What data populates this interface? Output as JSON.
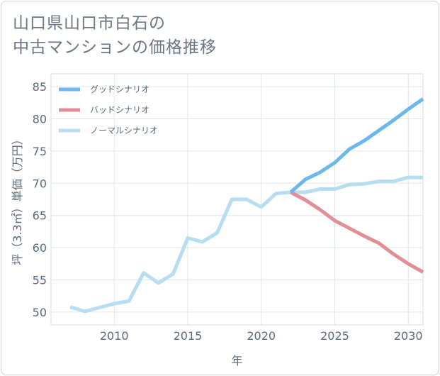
{
  "header": {
    "title_line1": "山口県山口市白石の",
    "title_line2": "中古マンションの価格推移"
  },
  "chart_data": {
    "type": "line",
    "title": "山口県山口市白石の中古マンションの価格推移",
    "xlabel": "年",
    "ylabel": "坪（3.3㎡）単価（万円）",
    "xlim": [
      2005.7,
      2031
    ],
    "ylim": [
      48,
      87
    ],
    "xticks": [
      2010,
      2015,
      2020,
      2025,
      2030
    ],
    "yticks": [
      50,
      55,
      60,
      65,
      70,
      75,
      80,
      85
    ],
    "grid": true,
    "legend_position": "top-left",
    "series": [
      {
        "name": "グッドシナリオ",
        "color": "#6cb8ea",
        "x": [
          2022,
          2023,
          2024,
          2025,
          2026,
          2027,
          2028,
          2029,
          2030,
          2031
        ],
        "values": [
          68.6,
          70.6,
          71.7,
          73.2,
          75.3,
          76.6,
          78.2,
          79.8,
          81.5,
          83.1
        ]
      },
      {
        "name": "バッドシナリオ",
        "color": "#e08f97",
        "x": [
          2022,
          2023,
          2024,
          2025,
          2026,
          2027,
          2028,
          2029,
          2030,
          2031
        ],
        "values": [
          68.6,
          67.4,
          65.9,
          64.2,
          63.0,
          61.8,
          60.7,
          59.0,
          57.5,
          56.2
        ]
      },
      {
        "name": "ノーマルシナリオ",
        "color": "#b6def0",
        "x": [
          2007,
          2008,
          2009,
          2010,
          2011,
          2012,
          2013,
          2014,
          2015,
          2016,
          2017,
          2018,
          2019,
          2020,
          2021,
          2022,
          2023,
          2024,
          2025,
          2026,
          2027,
          2028,
          2029,
          2030,
          2031
        ],
        "values": [
          50.8,
          50.1,
          50.7,
          51.3,
          51.7,
          56.1,
          54.5,
          55.9,
          61.5,
          60.9,
          62.3,
          67.5,
          67.5,
          66.3,
          68.4,
          68.6,
          68.6,
          69.1,
          69.1,
          69.8,
          69.9,
          70.3,
          70.3,
          70.9,
          70.9
        ]
      }
    ]
  }
}
